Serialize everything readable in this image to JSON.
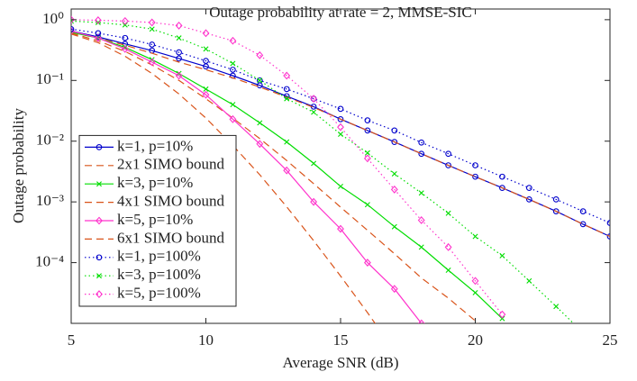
{
  "chart_data": {
    "type": "line",
    "title": "Outage probability at rate = 2, MMSE-SIC",
    "xlabel": "Average SNR (dB)",
    "ylabel": "Outage probability",
    "x": [
      5,
      6,
      7,
      8,
      9,
      10,
      11,
      12,
      13,
      14,
      15,
      16,
      17,
      18,
      19,
      20,
      21,
      22,
      23,
      24,
      25
    ],
    "xlim": [
      5,
      25
    ],
    "xticks": [
      5,
      10,
      15,
      20,
      25
    ],
    "ylim": [
      1e-05,
      1.5
    ],
    "ylog": true,
    "yticks": [
      {
        "value": 0.0001,
        "label": "10⁻⁴"
      },
      {
        "value": 0.001,
        "label": "10⁻³"
      },
      {
        "value": 0.01,
        "label": "10⁻²"
      },
      {
        "value": 0.1,
        "label": "10⁻¹"
      },
      {
        "value": 1,
        "label": "10⁰"
      }
    ],
    "grid": false,
    "legend": "lower-left",
    "series": [
      {
        "name": "k=1, p=10%",
        "color": "#0000cc",
        "dash": "solid",
        "marker": "circle",
        "values": [
          0.65,
          0.52,
          0.4,
          0.31,
          0.23,
          0.17,
          0.12,
          0.083,
          0.055,
          0.037,
          0.023,
          0.015,
          0.0097,
          0.0062,
          0.004,
          0.0026,
          0.0017,
          0.0011,
          0.0007,
          0.00043,
          0.00027
        ]
      },
      {
        "name": "2x1 SIMO bound",
        "color": "#d95319",
        "dash": "dashed",
        "marker": "none",
        "values": [
          0.62,
          0.5,
          0.38,
          0.28,
          0.2,
          0.15,
          0.11,
          0.078,
          0.053,
          0.036,
          0.023,
          0.015,
          0.0097,
          0.0062,
          0.004,
          0.0026,
          0.0017,
          0.0011,
          0.0007,
          0.00043,
          0.00027
        ]
      },
      {
        "name": "k=3, p=10%",
        "color": "#00dd00",
        "dash": "solid",
        "marker": "x",
        "values": [
          0.62,
          0.5,
          0.35,
          0.22,
          0.13,
          0.072,
          0.04,
          0.02,
          0.0097,
          0.0043,
          0.0018,
          0.0009,
          0.00039,
          0.00018,
          7.5e-05,
          3.2e-05,
          1.2e-05,
          null,
          null,
          null,
          null
        ]
      },
      {
        "name": "4x1 SIMO bound",
        "color": "#d95319",
        "dash": "dashed",
        "marker": "none",
        "values": [
          0.6,
          0.45,
          0.3,
          0.18,
          0.1,
          0.05,
          0.024,
          0.011,
          0.0048,
          0.002,
          0.00082,
          0.00034,
          0.00014,
          5.6e-05,
          2.6e-05,
          1.1e-05,
          4e-06,
          null,
          null,
          null,
          null
        ]
      },
      {
        "name": "k=5, p=10%",
        "color": "#ff33cc",
        "dash": "solid",
        "marker": "diamond",
        "values": [
          0.65,
          0.5,
          0.33,
          0.2,
          0.12,
          0.058,
          0.023,
          0.009,
          0.0033,
          0.001,
          0.00036,
          0.0001,
          3.7e-05,
          1e-05,
          null,
          null,
          null,
          null,
          null,
          null,
          null
        ]
      },
      {
        "name": "6x1 SIMO bound",
        "color": "#d95319",
        "dash": "dashed",
        "marker": "none",
        "values": [
          0.58,
          0.42,
          0.25,
          0.13,
          0.06,
          0.024,
          0.0085,
          0.0028,
          0.00083,
          0.00023,
          6e-05,
          1.5e-05,
          3.5e-06,
          null,
          null,
          null,
          null,
          null,
          null,
          null,
          null
        ]
      },
      {
        "name": "k=1, p=100%",
        "color": "#0000cc",
        "dash": "dotted",
        "marker": "circle",
        "values": [
          0.7,
          0.6,
          0.5,
          0.39,
          0.29,
          0.21,
          0.15,
          0.1,
          0.072,
          0.05,
          0.034,
          0.022,
          0.015,
          0.0095,
          0.0062,
          0.004,
          0.0026,
          0.0017,
          0.0011,
          0.0007,
          0.00045
        ]
      },
      {
        "name": "k=3, p=100%",
        "color": "#00dd00",
        "dash": "dotted",
        "marker": "x",
        "values": [
          0.95,
          0.9,
          0.82,
          0.7,
          0.5,
          0.33,
          0.19,
          0.1,
          0.05,
          0.03,
          0.013,
          0.0064,
          0.0029,
          0.0014,
          0.00065,
          0.00027,
          0.00013,
          5e-05,
          1.9e-05,
          7e-06,
          null
        ]
      },
      {
        "name": "k=5, p=100%",
        "color": "#ff33cc",
        "dash": "dotted",
        "marker": "diamond",
        "values": [
          1.0,
          0.98,
          0.95,
          0.9,
          0.8,
          0.6,
          0.45,
          0.26,
          0.12,
          0.05,
          0.017,
          0.0052,
          0.0016,
          0.0005,
          0.00018,
          5e-05,
          1.4e-05,
          null,
          null,
          null,
          null
        ]
      }
    ]
  }
}
